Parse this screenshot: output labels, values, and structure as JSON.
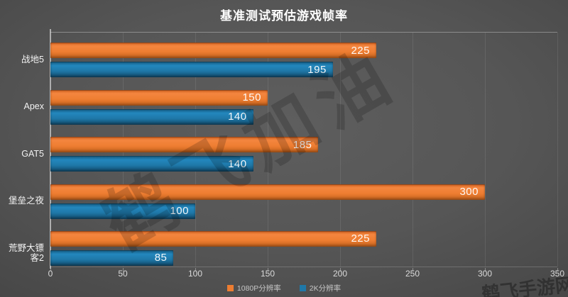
{
  "title": "基准测试预估游戏帧率",
  "watermarks": {
    "diagonal": "鹤飞加油",
    "corner": "鹤飞手游网"
  },
  "colors": {
    "series_1080p": "#ED7D31",
    "series_2k": "#1F78A8",
    "background": "#4E4E4E",
    "axis_line": "#AEAEAE",
    "text": "#FFFFFF"
  },
  "chart_data": {
    "type": "bar",
    "orientation": "horizontal",
    "title": "基准测试预估游戏帧率",
    "categories": [
      "战地5",
      "Apex",
      "GAT5",
      "堡垒之夜",
      "荒野大镖客2"
    ],
    "series": [
      {
        "name": "1080P分辨率",
        "color": "#ED7D31",
        "values": [
          225,
          150,
          185,
          300,
          225
        ]
      },
      {
        "name": "2K分辨率",
        "color": "#1F78A8",
        "values": [
          195,
          140,
          140,
          100,
          85
        ]
      }
    ],
    "xlabel": "",
    "ylabel": "",
    "xlim": [
      0,
      350
    ],
    "x_ticks": [
      0,
      50,
      100,
      150,
      200,
      250,
      300,
      350
    ],
    "grid": true,
    "value_labels": "inside-end",
    "legend_position": "bottom"
  }
}
